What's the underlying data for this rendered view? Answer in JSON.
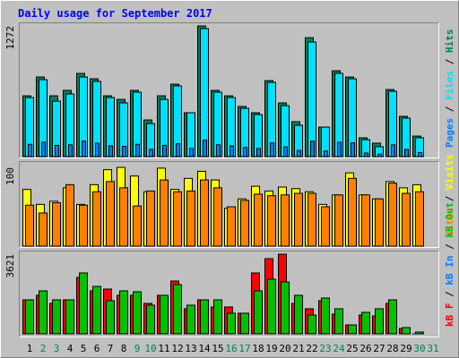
{
  "legend_separator": " / ",
  "chart_data": [
    {
      "type": "bar",
      "title": "Daily usage for September 2017",
      "ylim": [
        0,
        1272
      ],
      "yticks": [
        1272
      ],
      "series": [
        {
          "name": "Hits",
          "color": "#00805c",
          "values": [
            592,
            775,
            592,
            645,
            810,
            758,
            592,
            557,
            645,
            357,
            592,
            705,
            427,
            1272,
            645,
            592,
            488,
            427,
            740,
            523,
            340,
            1158,
            287,
            836,
            775,
            183,
            131,
            653,
            392,
            200,
            null
          ]
        },
        {
          "name": "Files",
          "color": "#00e0ff",
          "values": [
            575,
            749,
            540,
            610,
            775,
            732,
            575,
            523,
            627,
            322,
            557,
            688,
            427,
            1246,
            627,
            575,
            470,
            409,
            723,
            496,
            305,
            1115,
            287,
            810,
            758,
            165,
            96,
            636,
            375,
            183,
            null
          ]
        },
        {
          "name": "Pages",
          "color": "#0080ff",
          "values": [
            120,
            140,
            110,
            115,
            150,
            130,
            105,
            100,
            120,
            70,
            110,
            125,
            80,
            160,
            115,
            105,
            90,
            80,
            135,
            95,
            60,
            150,
            55,
            140,
            135,
            35,
            25,
            115,
            70,
            40,
            null
          ]
        }
      ]
    },
    {
      "type": "bar",
      "ylim": [
        0,
        100
      ],
      "yticks": [
        100
      ],
      "series": [
        {
          "name": "Visits",
          "color": "#ffff00",
          "values": [
            72,
            53,
            57,
            74,
            53,
            78,
            97,
            100,
            89,
            69,
            99,
            72,
            86,
            95,
            84,
            48,
            60,
            76,
            70,
            75,
            73,
            69,
            53,
            65,
            93,
            65,
            60,
            82,
            74,
            78,
            null
          ]
        },
        {
          "name": "Sites",
          "color": "#ff8000",
          "values": [
            52,
            42,
            55,
            78,
            52,
            69,
            82,
            74,
            51,
            70,
            84,
            69,
            70,
            84,
            74,
            50,
            58,
            66,
            64,
            65,
            67,
            67,
            50,
            65,
            86,
            65,
            60,
            80,
            67,
            69,
            null
          ]
        }
      ]
    },
    {
      "type": "bar",
      "ylim": [
        0,
        3621
      ],
      "yticks": [
        3621
      ],
      "categories": [
        "1",
        "2",
        "3",
        "4",
        "5",
        "6",
        "7",
        "8",
        "9",
        "10",
        "11",
        "12",
        "13",
        "14",
        "15",
        "16",
        "17",
        "18",
        "19",
        "20",
        "21",
        "22",
        "23",
        "24",
        "25",
        "26",
        "27",
        "28",
        "29",
        "30",
        "31"
      ],
      "category_colors": [
        "#000000",
        "#00805c",
        "#00805c",
        "#000000",
        "#000000",
        "#000000",
        "#000000",
        "#000000",
        "#00805c",
        "#00805c",
        "#000000",
        "#000000",
        "#000000",
        "#000000",
        "#000000",
        "#00805c",
        "#00805c",
        "#000000",
        "#000000",
        "#000000",
        "#000000",
        "#000000",
        "#00805c",
        "#00805c",
        "#000000",
        "#000000",
        "#000000",
        "#000000",
        "#000000",
        "#00805c",
        "#00805c"
      ],
      "legend_only": [
        {
          "name": "kB In",
          "color": "#0080ff",
          "after": 0
        }
      ],
      "series": [
        {
          "name": "kB F",
          "color": "#ff0000",
          "values": [
            1546,
            1750,
            1384,
            1546,
            2564,
            1953,
            2035,
            1750,
            1750,
            1384,
            1750,
            2401,
            1140,
            1546,
            1221,
            1221,
            936,
            2767,
            3418,
            3621,
            1384,
            1140,
            1506,
            895,
            407,
            855,
            814,
            1384,
            244,
            0,
            null
          ]
        },
        {
          "name": "kB Out",
          "color": "#00c000",
          "values": [
            1546,
            1953,
            1546,
            1546,
            2767,
            2157,
            1506,
            1953,
            1913,
            1302,
            1750,
            2238,
            1302,
            1546,
            1546,
            936,
            936,
            1953,
            2482,
            2360,
            1750,
            855,
            1628,
            1140,
            407,
            977,
            1140,
            1546,
            285,
            81,
            null
          ]
        }
      ]
    }
  ]
}
